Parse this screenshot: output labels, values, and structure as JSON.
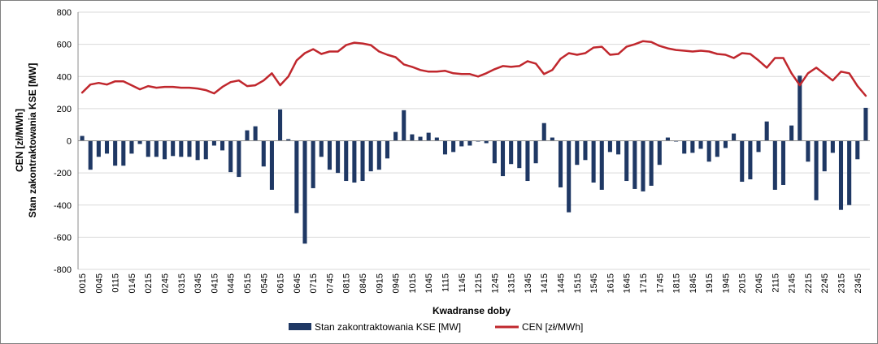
{
  "colors": {
    "bars": "#1f3864",
    "line": "#c0272d",
    "grid": "#d9d9d9",
    "axis": "#8c8c8c"
  },
  "chart_data": {
    "type": "bar+line",
    "xlabel": "Kwadranse doby",
    "ylabel_line1": "CEN [zł/MWh]",
    "ylabel_line2": "Stan zakontraktowania KSE [MW]",
    "ylim": [
      -800,
      800
    ],
    "ytick_step": 200,
    "grid": true,
    "legend_position": "bottom-center",
    "tick_labels": [
      "0015",
      "0045",
      "0115",
      "0145",
      "0215",
      "0245",
      "0315",
      "0345",
      "0415",
      "0445",
      "0515",
      "0545",
      "0615",
      "0645",
      "0715",
      "0745",
      "0815",
      "0845",
      "0915",
      "0945",
      "1015",
      "1045",
      "1115",
      "1145",
      "1215",
      "1245",
      "1315",
      "1345",
      "1415",
      "1445",
      "1515",
      "1545",
      "1615",
      "1645",
      "1715",
      "1745",
      "1815",
      "1845",
      "1915",
      "1945",
      "2015",
      "2045",
      "2115",
      "2145",
      "2215",
      "2245",
      "2315",
      "2345"
    ],
    "series": [
      {
        "name": "Stan zakontraktowania KSE [MW]",
        "type": "bar",
        "values": [
          30,
          -180,
          -100,
          -80,
          -155,
          -155,
          -80,
          -20,
          -100,
          -100,
          -115,
          -95,
          -100,
          -100,
          -120,
          -115,
          -30,
          -60,
          -195,
          -225,
          65,
          90,
          -160,
          -305,
          195,
          10,
          -450,
          -640,
          -295,
          -100,
          -180,
          -200,
          -250,
          -260,
          -250,
          -190,
          -180,
          -110,
          55,
          190,
          40,
          25,
          50,
          20,
          -85,
          -70,
          -35,
          -30,
          -5,
          -15,
          -140,
          -220,
          -145,
          -170,
          -250,
          -140,
          110,
          20,
          -290,
          -445,
          -150,
          -120,
          -260,
          -305,
          -70,
          -85,
          -250,
          -300,
          -315,
          -280,
          -150,
          20,
          -5,
          -80,
          -75,
          -50,
          -130,
          -100,
          -45,
          45,
          -255,
          -240,
          -70,
          120,
          -305,
          -275,
          95,
          405,
          -130,
          -370,
          -190,
          -75,
          -430,
          -400,
          -115,
          205
        ]
      },
      {
        "name": "CEN [zł/MWh]",
        "type": "line",
        "values": [
          300,
          350,
          360,
          350,
          370,
          370,
          345,
          320,
          340,
          330,
          335,
          335,
          330,
          330,
          325,
          315,
          295,
          335,
          365,
          375,
          340,
          345,
          375,
          420,
          345,
          400,
          500,
          545,
          570,
          540,
          555,
          555,
          595,
          610,
          605,
          595,
          555,
          535,
          520,
          475,
          460,
          440,
          430,
          430,
          435,
          420,
          415,
          415,
          400,
          420,
          445,
          465,
          460,
          465,
          495,
          480,
          415,
          440,
          510,
          545,
          535,
          545,
          580,
          585,
          535,
          540,
          585,
          600,
          620,
          615,
          590,
          575,
          565,
          560,
          555,
          560,
          555,
          540,
          535,
          515,
          545,
          540,
          500,
          455,
          515,
          515,
          420,
          345,
          420,
          455,
          415,
          375,
          430,
          420,
          340,
          280
        ]
      }
    ]
  }
}
